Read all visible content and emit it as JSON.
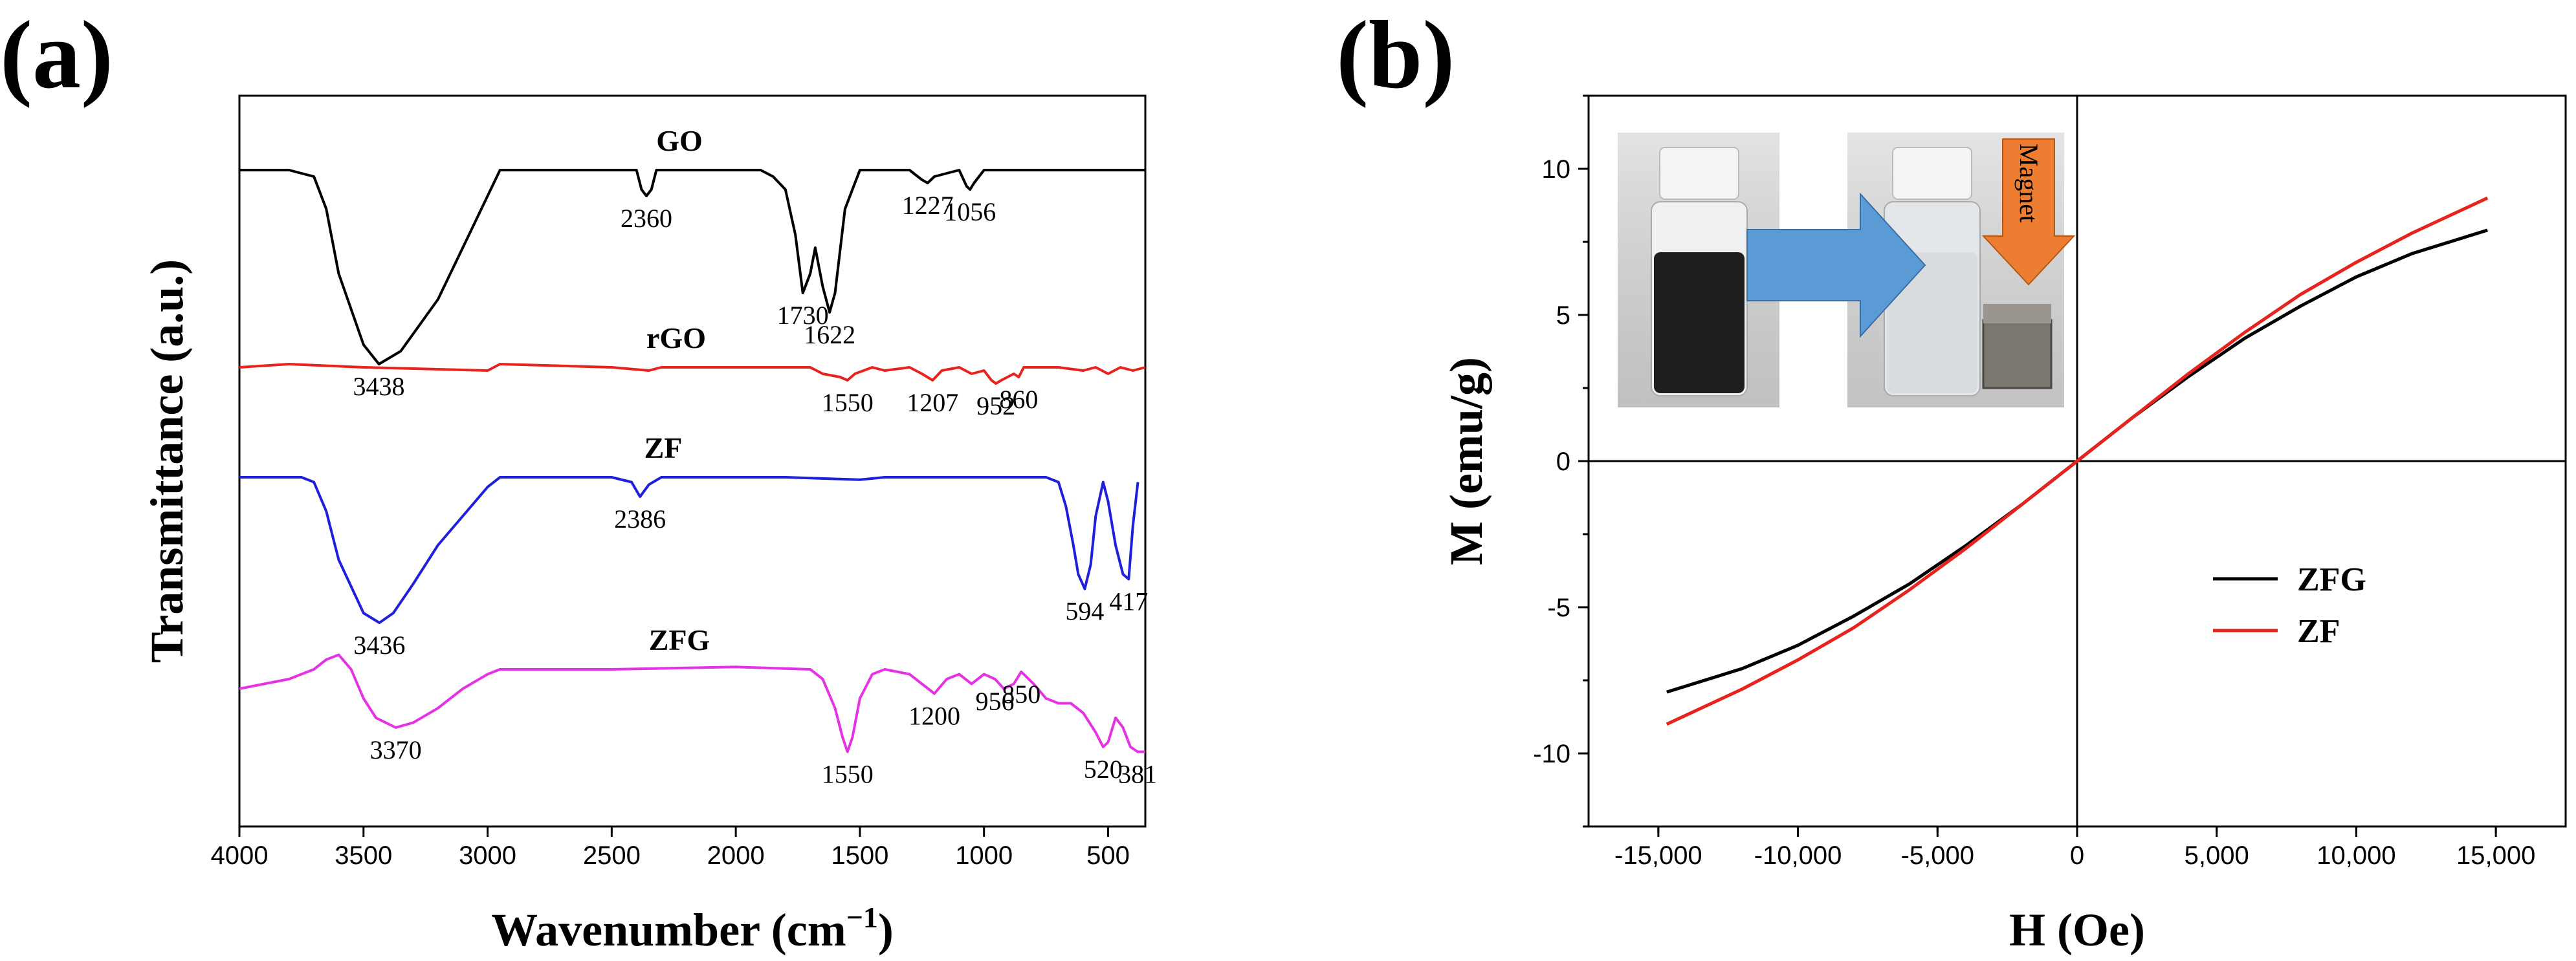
{
  "chart_data": [
    {
      "type": "line",
      "panel": "(a)",
      "title": "",
      "xlabel": "Wavenumber (cm",
      "xlabel_superscript": "−1",
      "xlabel_close": ")",
      "ylabel": "Transmittance (a.u.)",
      "xlim": [
        4000,
        350
      ],
      "xticks": [
        4000,
        3500,
        3000,
        2500,
        2000,
        1500,
        1000,
        500
      ],
      "xtick_labels": [
        "4000",
        "3500",
        "3000",
        "2500",
        "2000",
        "1500",
        "1000",
        "500"
      ],
      "series": [
        {
          "name": "GO",
          "color": "#000000",
          "baseline": 9.2,
          "x": [
            4000,
            3800,
            3700,
            3650,
            3600,
            3500,
            3438,
            3350,
            3200,
            3050,
            2950,
            2900,
            2400,
            2380,
            2360,
            2340,
            2320,
            1900,
            1850,
            1800,
            1760,
            1730,
            1700,
            1680,
            1650,
            1622,
            1600,
            1560,
            1500,
            1300,
            1250,
            1227,
            1200,
            1100,
            1070,
            1056,
            1040,
            1000,
            800,
            350
          ],
          "y": [
            9.2,
            9.2,
            9.1,
            8.6,
            7.6,
            6.5,
            6.2,
            6.4,
            7.2,
            8.4,
            9.2,
            9.2,
            9.2,
            8.9,
            8.8,
            8.9,
            9.2,
            9.2,
            9.1,
            8.9,
            8.2,
            7.3,
            7.6,
            8.0,
            7.4,
            7.0,
            7.3,
            8.6,
            9.2,
            9.2,
            9.05,
            9.0,
            9.1,
            9.2,
            8.95,
            8.9,
            9.0,
            9.2,
            9.2,
            9.2
          ],
          "peaks": [
            {
              "x": 3438,
              "label": "3438"
            },
            {
              "x": 2360,
              "label": "2360"
            },
            {
              "x": 1730,
              "label": "1730"
            },
            {
              "x": 1622,
              "label": "1622"
            },
            {
              "x": 1227,
              "label": "1227"
            },
            {
              "x": 1056,
              "label": "1056"
            }
          ]
        },
        {
          "name": "rGO",
          "color": "#e8231d",
          "baseline": 5.8,
          "x": [
            4000,
            3800,
            3500,
            3000,
            2950,
            2500,
            2350,
            2300,
            1700,
            1650,
            1580,
            1550,
            1520,
            1450,
            1400,
            1300,
            1250,
            1207,
            1170,
            1100,
            1050,
            1000,
            970,
            952,
            930,
            880,
            860,
            840,
            700,
            600,
            550,
            500,
            450,
            400,
            350
          ],
          "y": [
            5.8,
            5.85,
            5.8,
            5.75,
            5.85,
            5.8,
            5.75,
            5.8,
            5.8,
            5.7,
            5.65,
            5.6,
            5.7,
            5.8,
            5.75,
            5.8,
            5.7,
            5.6,
            5.75,
            5.8,
            5.7,
            5.75,
            5.6,
            5.55,
            5.6,
            5.7,
            5.65,
            5.8,
            5.8,
            5.75,
            5.8,
            5.7,
            5.8,
            5.75,
            5.8
          ],
          "peaks": [
            {
              "x": 1550,
              "label": "1550"
            },
            {
              "x": 1207,
              "label": "1207"
            },
            {
              "x": 952,
              "label": "952"
            },
            {
              "x": 860,
              "label": "860"
            }
          ]
        },
        {
          "name": "ZF",
          "color": "#1f1fdc",
          "baseline": 4.0,
          "x": [
            4000,
            3750,
            3700,
            3650,
            3600,
            3500,
            3436,
            3380,
            3300,
            3200,
            3100,
            3000,
            2950,
            2500,
            2420,
            2386,
            2350,
            2300,
            1800,
            1500,
            1400,
            1000,
            750,
            700,
            670,
            640,
            620,
            594,
            570,
            550,
            520,
            500,
            470,
            440,
            417,
            400,
            380
          ],
          "y": [
            4.0,
            4.0,
            3.9,
            3.3,
            2.3,
            1.2,
            1.0,
            1.2,
            1.8,
            2.6,
            3.2,
            3.8,
            4.0,
            4.0,
            3.9,
            3.6,
            3.85,
            4.0,
            4.0,
            3.95,
            4.0,
            4.0,
            4.0,
            3.9,
            3.4,
            2.6,
            2.0,
            1.7,
            2.2,
            3.2,
            3.9,
            3.5,
            2.6,
            2.0,
            1.9,
            3.0,
            3.9
          ],
          "peaks": [
            {
              "x": 3436,
              "label": "3436"
            },
            {
              "x": 2386,
              "label": "2386"
            },
            {
              "x": 594,
              "label": "594"
            },
            {
              "x": 417,
              "label": "417"
            }
          ]
        },
        {
          "name": "ZFG",
          "color": "#e532e5",
          "baseline": 3.2,
          "x": [
            4000,
            3800,
            3700,
            3650,
            3600,
            3550,
            3500,
            3450,
            3370,
            3300,
            3200,
            3100,
            3000,
            2950,
            2500,
            2000,
            1700,
            1650,
            1600,
            1570,
            1550,
            1530,
            1500,
            1450,
            1400,
            1300,
            1250,
            1200,
            1150,
            1100,
            1050,
            1000,
            956,
            920,
            880,
            850,
            800,
            750,
            700,
            650,
            600,
            550,
            520,
            500,
            470,
            440,
            410,
            381,
            350
          ],
          "y": [
            2.8,
            3.0,
            3.2,
            3.4,
            3.5,
            3.2,
            2.6,
            2.2,
            2.0,
            2.1,
            2.4,
            2.8,
            3.1,
            3.2,
            3.2,
            3.25,
            3.2,
            3.0,
            2.4,
            1.8,
            1.5,
            1.8,
            2.6,
            3.1,
            3.2,
            3.1,
            2.9,
            2.7,
            3.0,
            3.1,
            2.9,
            3.1,
            3.0,
            2.8,
            2.9,
            3.15,
            2.9,
            2.6,
            2.5,
            2.5,
            2.3,
            1.9,
            1.6,
            1.7,
            2.2,
            2.0,
            1.6,
            1.5,
            1.5
          ],
          "peaks": [
            {
              "x": 3370,
              "label": "3370"
            },
            {
              "x": 1550,
              "label": "1550"
            },
            {
              "x": 1200,
              "label": "1200"
            },
            {
              "x": 956,
              "label": "956"
            },
            {
              "x": 850,
              "label": "850"
            },
            {
              "x": 520,
              "label": "520"
            },
            {
              "x": 381,
              "label": "381"
            }
          ]
        }
      ]
    },
    {
      "type": "line",
      "panel": "(b)",
      "title": "",
      "xlabel": "H (Oe)",
      "ylabel": "M (emu/g)",
      "xlim": [
        -17500,
        17500
      ],
      "ylim": [
        -12.5,
        12.5
      ],
      "xticks": [
        -15000,
        -10000,
        -5000,
        0,
        5000,
        10000,
        15000
      ],
      "xtick_labels": [
        "-15,000",
        "-10,000",
        "-5,000",
        "0",
        "5,000",
        "10,000",
        "15,000"
      ],
      "yticks": [
        -10,
        -5,
        0,
        5,
        10
      ],
      "ytick_labels": [
        "-10",
        "-5",
        "0",
        "5",
        "10"
      ],
      "legend_position": "right",
      "series": [
        {
          "name": "ZFG",
          "color": "#000000",
          "x": [
            -14700,
            -12000,
            -10000,
            -8000,
            -6000,
            -4000,
            -2000,
            0,
            2000,
            4000,
            6000,
            8000,
            10000,
            12000,
            14700
          ],
          "y": [
            -7.9,
            -7.1,
            -6.3,
            -5.3,
            -4.2,
            -2.9,
            -1.5,
            0,
            1.5,
            2.9,
            4.2,
            5.3,
            6.3,
            7.1,
            7.9
          ]
        },
        {
          "name": "ZF",
          "color": "#e8231d",
          "x": [
            -14700,
            -12000,
            -10000,
            -8000,
            -6000,
            -4000,
            -2000,
            0,
            2000,
            4000,
            6000,
            8000,
            10000,
            12000,
            14700
          ],
          "y": [
            -9.0,
            -7.8,
            -6.8,
            -5.7,
            -4.4,
            -3.0,
            -1.5,
            0,
            1.5,
            3.0,
            4.4,
            5.7,
            6.8,
            7.8,
            9.0
          ]
        }
      ],
      "inset": {
        "arrow_color": "#5b9bd5",
        "magnet_arrow_color": "#ed7d31",
        "magnet_label": "Magnet"
      }
    }
  ]
}
